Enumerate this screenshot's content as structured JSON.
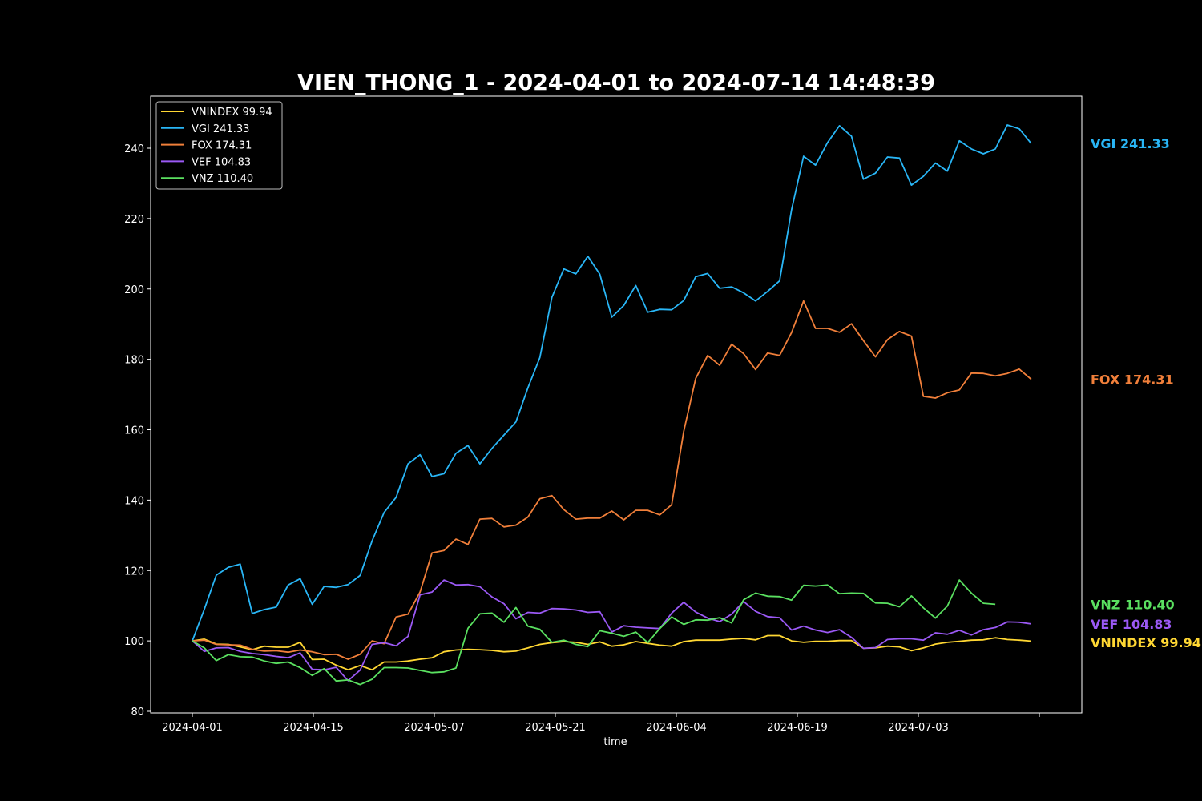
{
  "chart_data": {
    "type": "line",
    "title": "VIEN_THONG_1 - 2024-04-01 to 2024-07-14 14:48:39",
    "xlabel": "time",
    "ylabel": "",
    "ylim": [
      80,
      250
    ],
    "yticks": [
      80,
      100,
      120,
      140,
      160,
      180,
      200,
      220,
      240
    ],
    "x_start": "2024-04-01",
    "x_end": "2024-07-15",
    "xtick_labels": [
      "2024-04-01",
      "2024-04-15",
      "2024-05-07",
      "2024-05-21",
      "2024-06-04",
      "2024-06-19",
      "2024-07-03",
      ""
    ],
    "grid": false,
    "legend_position": "upper-left",
    "series": [
      {
        "name": "VNINDEX",
        "legend_label": "VNINDEX 99.94",
        "end_label": "VNINDEX 99.94",
        "last_value": 99.94,
        "color": "#ffd733",
        "values": [
          100.0,
          100.5,
          99.1,
          99.0,
          98.3,
          97.5,
          98.5,
          98.2,
          98.2,
          99.6,
          94.7,
          94.8,
          93.1,
          91.8,
          93.0,
          91.8,
          94.0,
          94.0,
          94.3,
          94.8,
          95.2,
          96.9,
          97.4,
          97.6,
          97.5,
          97.3,
          96.9,
          97.1,
          98.0,
          99.0,
          99.5,
          99.8,
          99.6,
          99.0,
          99.7,
          98.5,
          98.9,
          99.8,
          99.3,
          98.8,
          98.5,
          99.8,
          100.2,
          100.2,
          100.2,
          100.5,
          100.7,
          100.3,
          101.5,
          101.5,
          100.0,
          99.6,
          99.9,
          99.9,
          100.1,
          100.1,
          97.9,
          98.0,
          98.5,
          98.3,
          97.2,
          98.0,
          99.1,
          99.6,
          99.9,
          100.2,
          100.3,
          100.9,
          100.4,
          100.2,
          99.94
        ]
      },
      {
        "name": "VGI",
        "legend_label": "VGI 241.33",
        "end_label": "VGI 241.33",
        "last_value": 241.33,
        "color": "#29b6f6",
        "values": [
          100.0,
          109.0,
          118.7,
          120.9,
          121.8,
          107.8,
          108.9,
          109.6,
          115.9,
          117.7,
          110.4,
          115.5,
          115.2,
          116.0,
          118.6,
          128.4,
          136.5,
          140.8,
          150.3,
          152.9,
          146.7,
          147.5,
          153.3,
          155.5,
          150.3,
          154.7,
          158.5,
          162.2,
          171.9,
          180.5,
          197.6,
          205.7,
          204.3,
          209.3,
          204.2,
          192.0,
          195.3,
          201.0,
          193.4,
          194.2,
          194.1,
          196.7,
          203.5,
          204.4,
          200.2,
          200.6,
          198.9,
          196.6,
          199.3,
          202.3,
          222.5,
          237.7,
          235.2,
          241.6,
          246.4,
          243.4,
          231.2,
          232.9,
          237.5,
          237.2,
          229.5,
          232.0,
          235.8,
          233.5,
          242.1,
          239.8,
          238.4,
          239.8,
          246.6,
          245.5,
          241.33
        ]
      },
      {
        "name": "FOX",
        "legend_label": "FOX 174.31",
        "end_label": "FOX 174.31",
        "last_value": 174.31,
        "color": "#f07f3a",
        "values": [
          100.0,
          100.2,
          99.0,
          98.9,
          98.8,
          97.6,
          97.1,
          97.2,
          96.8,
          97.4,
          96.9,
          96.1,
          96.2,
          94.8,
          96.2,
          100.0,
          99.2,
          106.8,
          107.6,
          113.9,
          125.0,
          125.7,
          128.9,
          127.4,
          134.6,
          134.8,
          132.4,
          132.9,
          135.2,
          140.4,
          141.3,
          137.3,
          134.6,
          134.9,
          134.9,
          136.9,
          134.4,
          137.1,
          137.1,
          135.8,
          138.7,
          159.5,
          174.6,
          181.1,
          178.3,
          184.3,
          181.6,
          177.1,
          181.8,
          181.1,
          187.6,
          196.6,
          188.8,
          188.8,
          187.7,
          190.1,
          185.3,
          180.7,
          185.6,
          187.9,
          186.6,
          169.5,
          169.0,
          170.5,
          171.3,
          176.1,
          176.0,
          175.3,
          176.0,
          177.2,
          174.31
        ]
      },
      {
        "name": "VEF",
        "legend_label": "VEF 104.83",
        "end_label": "VEF 104.83",
        "last_value": 104.83,
        "color": "#9b59f5",
        "values": [
          100.0,
          97.0,
          98.0,
          98.1,
          97.0,
          96.4,
          96.1,
          95.6,
          95.2,
          96.6,
          91.9,
          91.8,
          92.5,
          88.7,
          91.7,
          99.0,
          99.5,
          98.6,
          101.3,
          113.1,
          113.9,
          117.3,
          115.9,
          116.0,
          115.4,
          112.5,
          110.6,
          106.3,
          108.1,
          107.9,
          109.2,
          109.1,
          108.8,
          108.1,
          108.3,
          102.5,
          104.3,
          103.9,
          103.7,
          103.5,
          107.9,
          111.0,
          108.2,
          106.5,
          105.5,
          107.6,
          111.2,
          108.4,
          106.9,
          106.6,
          103.1,
          104.2,
          103.1,
          102.4,
          103.2,
          101.0,
          97.9,
          98.1,
          100.4,
          100.6,
          100.6,
          100.2,
          102.3,
          101.9,
          103.0,
          101.7,
          103.2,
          103.8,
          105.4,
          105.3,
          104.83
        ]
      },
      {
        "name": "VNZ",
        "legend_label": "VNZ 110.40",
        "end_label": "VNZ 110.40",
        "last_value": 110.4,
        "color": "#5ae060",
        "values": [
          100.0,
          98.0,
          94.4,
          96.1,
          95.5,
          95.4,
          94.3,
          93.6,
          94.0,
          92.4,
          90.2,
          92.1,
          88.6,
          88.9,
          87.6,
          89.1,
          92.4,
          92.4,
          92.3,
          91.6,
          91.0,
          91.2,
          92.3,
          103.6,
          107.7,
          107.9,
          105.3,
          109.5,
          104.2,
          103.3,
          99.6,
          100.2,
          99.0,
          98.4,
          102.9,
          102.2,
          101.3,
          102.5,
          99.5,
          103.5,
          106.8,
          104.7,
          106.0,
          105.9,
          106.6,
          105.1,
          111.7,
          113.6,
          112.7,
          112.6,
          111.6,
          115.8,
          115.6,
          115.9,
          113.4,
          113.6,
          113.5,
          110.8,
          110.7,
          109.7,
          112.8,
          109.4,
          106.5,
          109.9,
          117.3,
          113.6,
          110.7,
          110.4
        ]
      }
    ]
  }
}
